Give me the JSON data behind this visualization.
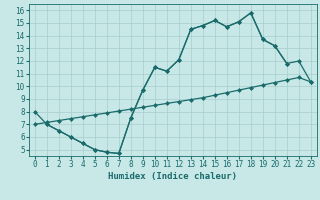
{
  "xlabel": "Humidex (Indice chaleur)",
  "xlim": [
    -0.5,
    23.5
  ],
  "ylim": [
    4.5,
    16.5
  ],
  "xticks": [
    0,
    1,
    2,
    3,
    4,
    5,
    6,
    7,
    8,
    9,
    10,
    11,
    12,
    13,
    14,
    15,
    16,
    17,
    18,
    19,
    20,
    21,
    22,
    23
  ],
  "yticks": [
    5,
    6,
    7,
    8,
    9,
    10,
    11,
    12,
    13,
    14,
    15,
    16
  ],
  "bg_color": "#c8e8e8",
  "grid_color": "#a8cccc",
  "line_color": "#1a6b6b",
  "line1_x": [
    0,
    1,
    2,
    3,
    4,
    5,
    6,
    7,
    8,
    9,
    10,
    11,
    12,
    13,
    14,
    15,
    16,
    17,
    18,
    19,
    20,
    21
  ],
  "line1_y": [
    8.0,
    7.0,
    6.5,
    6.0,
    5.5,
    5.0,
    4.8,
    4.7,
    7.5,
    9.7,
    11.5,
    11.2,
    12.1,
    14.5,
    14.8,
    15.2,
    14.7,
    15.1,
    15.8,
    13.7,
    13.2,
    11.8
  ],
  "line2_x": [
    0,
    1,
    2,
    3,
    4,
    5,
    6,
    7,
    8,
    9,
    10,
    11,
    12,
    13,
    14,
    15,
    16,
    17,
    18,
    19,
    20,
    21,
    22,
    23
  ],
  "line2_y": [
    7.0,
    7.15,
    7.3,
    7.45,
    7.6,
    7.75,
    7.9,
    8.05,
    8.2,
    8.35,
    8.5,
    8.65,
    8.8,
    8.95,
    9.1,
    9.3,
    9.5,
    9.7,
    9.9,
    10.1,
    10.3,
    10.5,
    10.7,
    10.35
  ],
  "line3_x": [
    1,
    2,
    3,
    4,
    5,
    6,
    7,
    8,
    9,
    10,
    11,
    12,
    13,
    14,
    15,
    16,
    17,
    18,
    19,
    20,
    21,
    22,
    23
  ],
  "line3_y": [
    7.0,
    6.5,
    6.0,
    5.5,
    5.0,
    4.8,
    4.7,
    7.5,
    9.7,
    11.5,
    11.2,
    12.1,
    14.5,
    14.8,
    15.2,
    14.7,
    15.1,
    15.8,
    13.7,
    13.2,
    11.8,
    12.0,
    10.35
  ]
}
